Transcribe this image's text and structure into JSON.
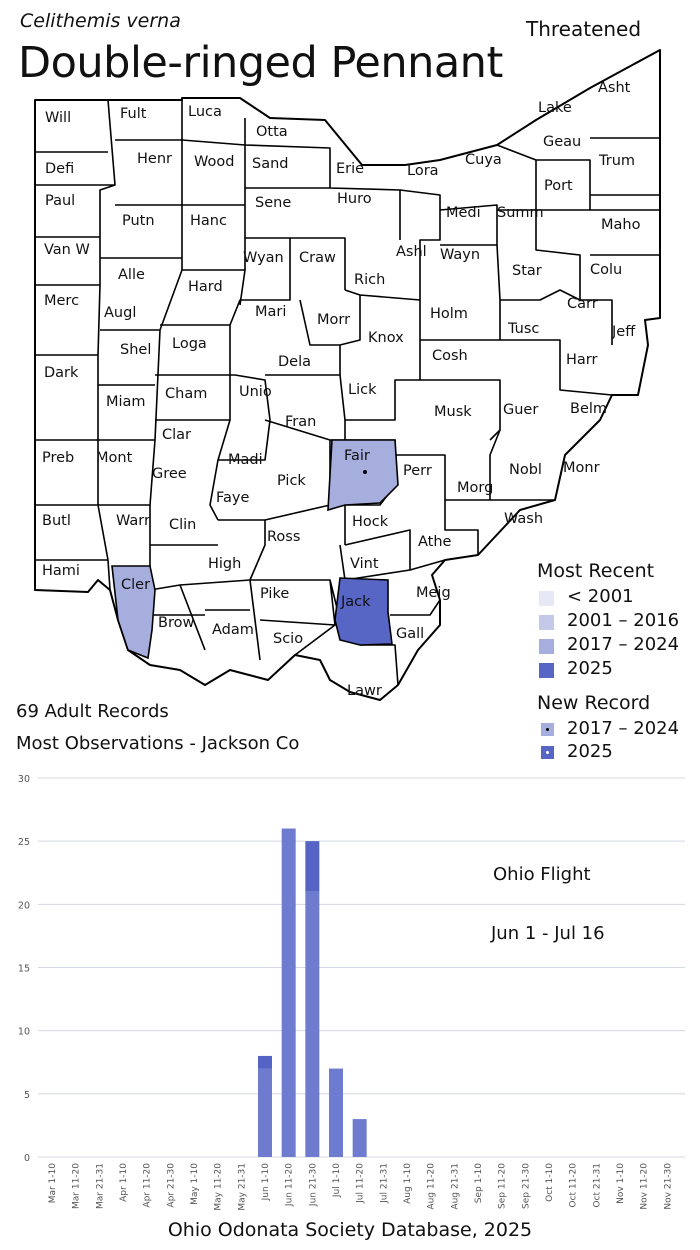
{
  "header": {
    "scientific_name": "Celithemis verna",
    "common_name": "Double-ringed Pennant",
    "status": "Threatened"
  },
  "map": {
    "county_labels": [
      "Will",
      "Fult",
      "Luca",
      "Otta",
      "Asht",
      "Lake",
      "Defi",
      "Henr",
      "Wood",
      "Sand",
      "Erie",
      "Lora",
      "Cuya",
      "Geau",
      "Trum",
      "Paul",
      "Putn",
      "Hanc",
      "Sene",
      "Huro",
      "Medi",
      "Summ",
      "Port",
      "Maho",
      "Van W",
      "Alle",
      "Hard",
      "Wyan",
      "Craw",
      "Rich",
      "Ashl",
      "Wayn",
      "Star",
      "Colu",
      "Merc",
      "Augl",
      "Mari",
      "Morr",
      "Holm",
      "Tusc",
      "Carr",
      "Jeff",
      "Shel",
      "Loga",
      "Unio",
      "Dela",
      "Knox",
      "Cosh",
      "Harr",
      "Dark",
      "Cham",
      "Lick",
      "Musk",
      "Guer",
      "Belm",
      "Miam",
      "Clar",
      "Fran",
      "Madi",
      "Fair",
      "Perr",
      "Nobl",
      "Monr",
      "Preb",
      "Mont",
      "Gree",
      "Pick",
      "Morg",
      "Faye",
      "Wash",
      "Butl",
      "Warr",
      "Clin",
      "Ross",
      "Hock",
      "Athe",
      "Hami",
      "Cler",
      "High",
      "Vint",
      "Meig",
      "Pike",
      "Jack",
      "Brow",
      "Adam",
      "Scio",
      "Gall",
      "Lawr"
    ],
    "highlighted": [
      {
        "county": "Fair",
        "category": "2017 – 2024",
        "new_record": "2017 – 2024"
      },
      {
        "county": "Cler",
        "category": "2017 – 2024",
        "new_record": ""
      },
      {
        "county": "Jack",
        "category": "2025",
        "new_record": ""
      }
    ],
    "colors": {
      "lt2001": "#e6e8f6",
      "y2001_2016": "#c4c9ea",
      "y2017_2024": "#a6aede",
      "y2025": "#5765c5"
    }
  },
  "legend": {
    "most_recent_title": "Most Recent",
    "most_recent_items": [
      "< 2001",
      "2001 – 2016",
      "2017 – 2024",
      "2025"
    ],
    "new_record_title": "New Record",
    "new_record_items": [
      "2017 – 2024",
      "2025"
    ]
  },
  "stats": {
    "records": "69 Adult Records",
    "most_observations": "Most Observations - Jackson Co"
  },
  "chart_data": {
    "type": "bar",
    "stacked": true,
    "categories": [
      "Mar 1-10",
      "Mar 11-20",
      "Mar 21-31",
      "Apr 1-10",
      "Apr 11-20",
      "Apr 21-30",
      "May 1-10",
      "May 11-20",
      "May 21-31",
      "Jun 1-10",
      "Jun 11-20",
      "Jun 21-30",
      "Jul 1-10",
      "Jul 11-20",
      "Jul 21-31",
      "Aug 1-10",
      "Aug 11-20",
      "Aug 21-31",
      "Sep 1-10",
      "Sep 11-20",
      "Sep 21-30",
      "Oct 1-10",
      "Oct 11-20",
      "Oct 21-31",
      "Nov 1-10",
      "Nov 11-20",
      "Nov 21-30"
    ],
    "series": [
      {
        "values": [
          0,
          0,
          0,
          0,
          0,
          0,
          0,
          0,
          0,
          7,
          26,
          21,
          7,
          3,
          0,
          0,
          0,
          0,
          0,
          0,
          0,
          0,
          0,
          0,
          0,
          0,
          0
        ],
        "color": "#6d7ccf"
      },
      {
        "values": [
          0,
          0,
          0,
          0,
          0,
          0,
          0,
          0,
          0,
          1,
          0,
          4,
          0,
          0,
          0,
          0,
          0,
          0,
          0,
          0,
          0,
          0,
          0,
          0,
          0,
          0,
          0
        ],
        "color": "#5563c4"
      }
    ],
    "ylim": [
      0,
      30
    ],
    "yticks": [
      0,
      5,
      10,
      15,
      20,
      25,
      30
    ],
    "grid": true,
    "annotations": [
      "Ohio Flight",
      "Jun 1 - Jul 16"
    ]
  },
  "footer": {
    "source": "Ohio Odonata Society Database, 2025"
  }
}
